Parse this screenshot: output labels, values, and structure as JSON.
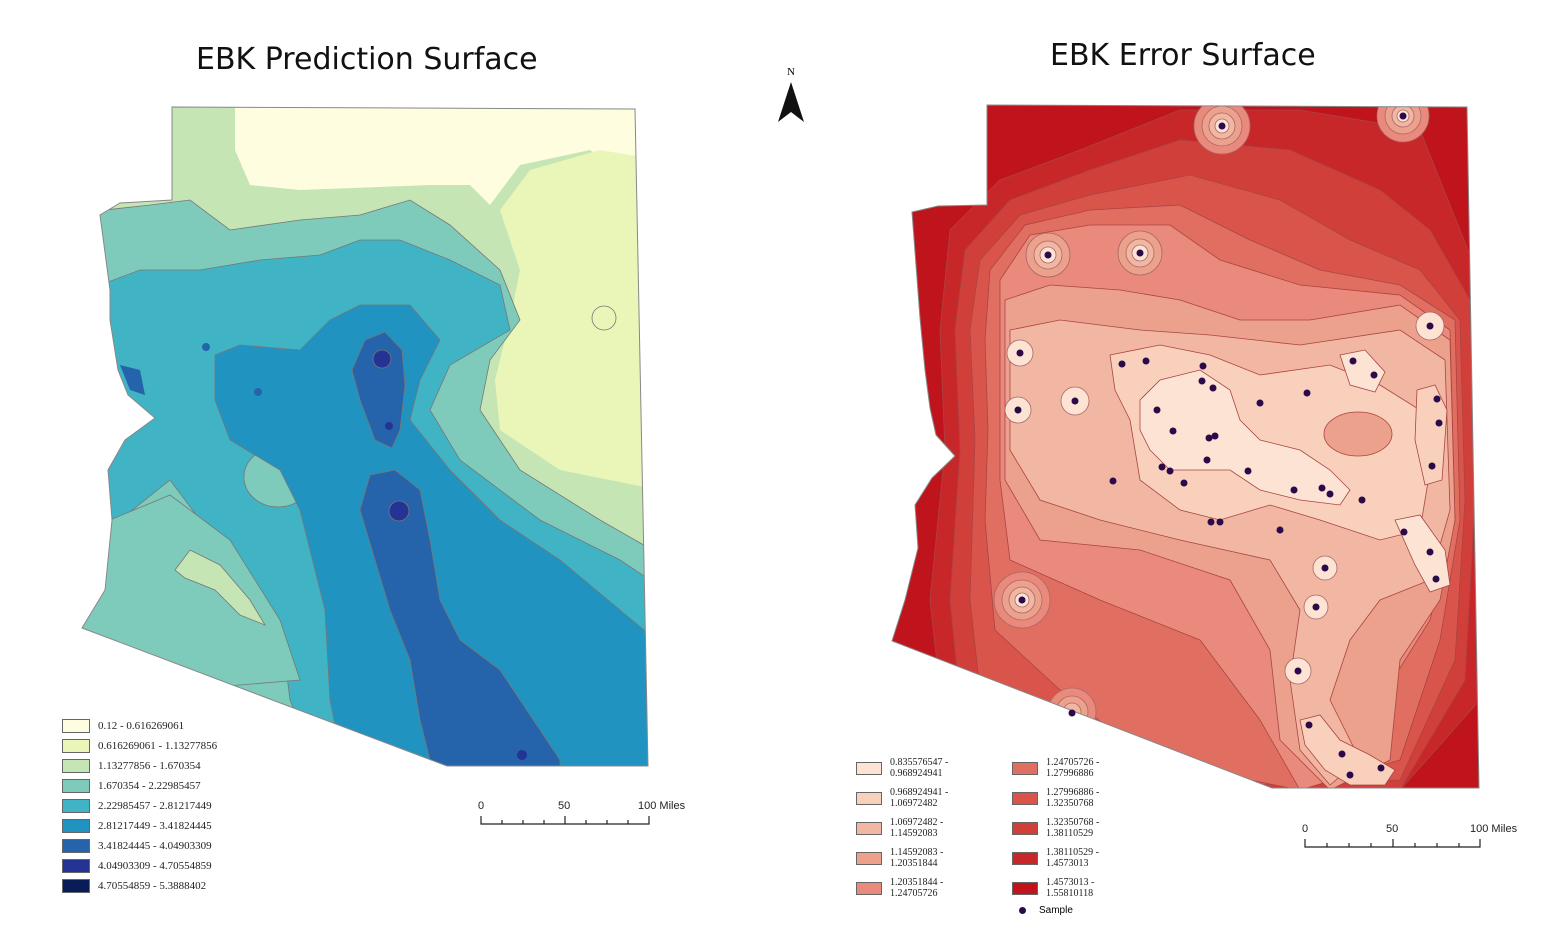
{
  "left_map": {
    "title": "EBK Prediction Surface",
    "legend": [
      {
        "label": "0.12 - 0.616269061",
        "color": "#fffde0"
      },
      {
        "label": "0.616269061 - 1.13277856",
        "color": "#eaf5b8"
      },
      {
        "label": "1.13277856 - 1.670354",
        "color": "#c5e6b4"
      },
      {
        "label": "1.670354 - 2.22985457",
        "color": "#7ecbbc"
      },
      {
        "label": "2.22985457 - 2.81217449",
        "color": "#40b4c4"
      },
      {
        "label": "2.81217449 - 3.41824445",
        "color": "#2193c0"
      },
      {
        "label": "3.41824445 - 4.04903309",
        "color": "#2563ab"
      },
      {
        "label": "4.04903309 - 4.70554859",
        "color": "#253494"
      },
      {
        "label": "4.70554859 - 5.3888402",
        "color": "#081d58"
      }
    ],
    "scale": {
      "labels": [
        "0",
        "50",
        "100 Miles"
      ]
    }
  },
  "right_map": {
    "title": "EBK Error Surface",
    "legend_col1": [
      {
        "label1": "0.835576547 -",
        "label2": "0.968924941",
        "color": "#fce3d3"
      },
      {
        "label1": "0.968924941 -",
        "label2": "1.06972482",
        "color": "#f8d0bb"
      },
      {
        "label1": "1.06972482 -",
        "label2": "1.14592083",
        "color": "#f2b7a2"
      },
      {
        "label1": "1.14592083 -",
        "label2": "1.20351844",
        "color": "#eca18c"
      },
      {
        "label1": "1.20351844 -",
        "label2": "1.24705726",
        "color": "#e98a7c"
      }
    ],
    "legend_col2": [
      {
        "label1": "1.24705726 -",
        "label2": "1.27996886",
        "color": "#e06f61"
      },
      {
        "label1": "1.27996886 -",
        "label2": "1.32350768",
        "color": "#d9554b"
      },
      {
        "label1": "1.32350768 -",
        "label2": "1.38110529",
        "color": "#d03f3a"
      },
      {
        "label1": "1.38110529 -",
        "label2": "1.4573013",
        "color": "#c8272a"
      },
      {
        "label1": "1.4573013 -",
        "label2": "1.55810118",
        "color": "#c0141c"
      }
    ],
    "sample_label": "Sample",
    "scale": {
      "labels": [
        "0",
        "50",
        "100 Miles"
      ]
    }
  },
  "north_arrow": {
    "label": "N"
  }
}
